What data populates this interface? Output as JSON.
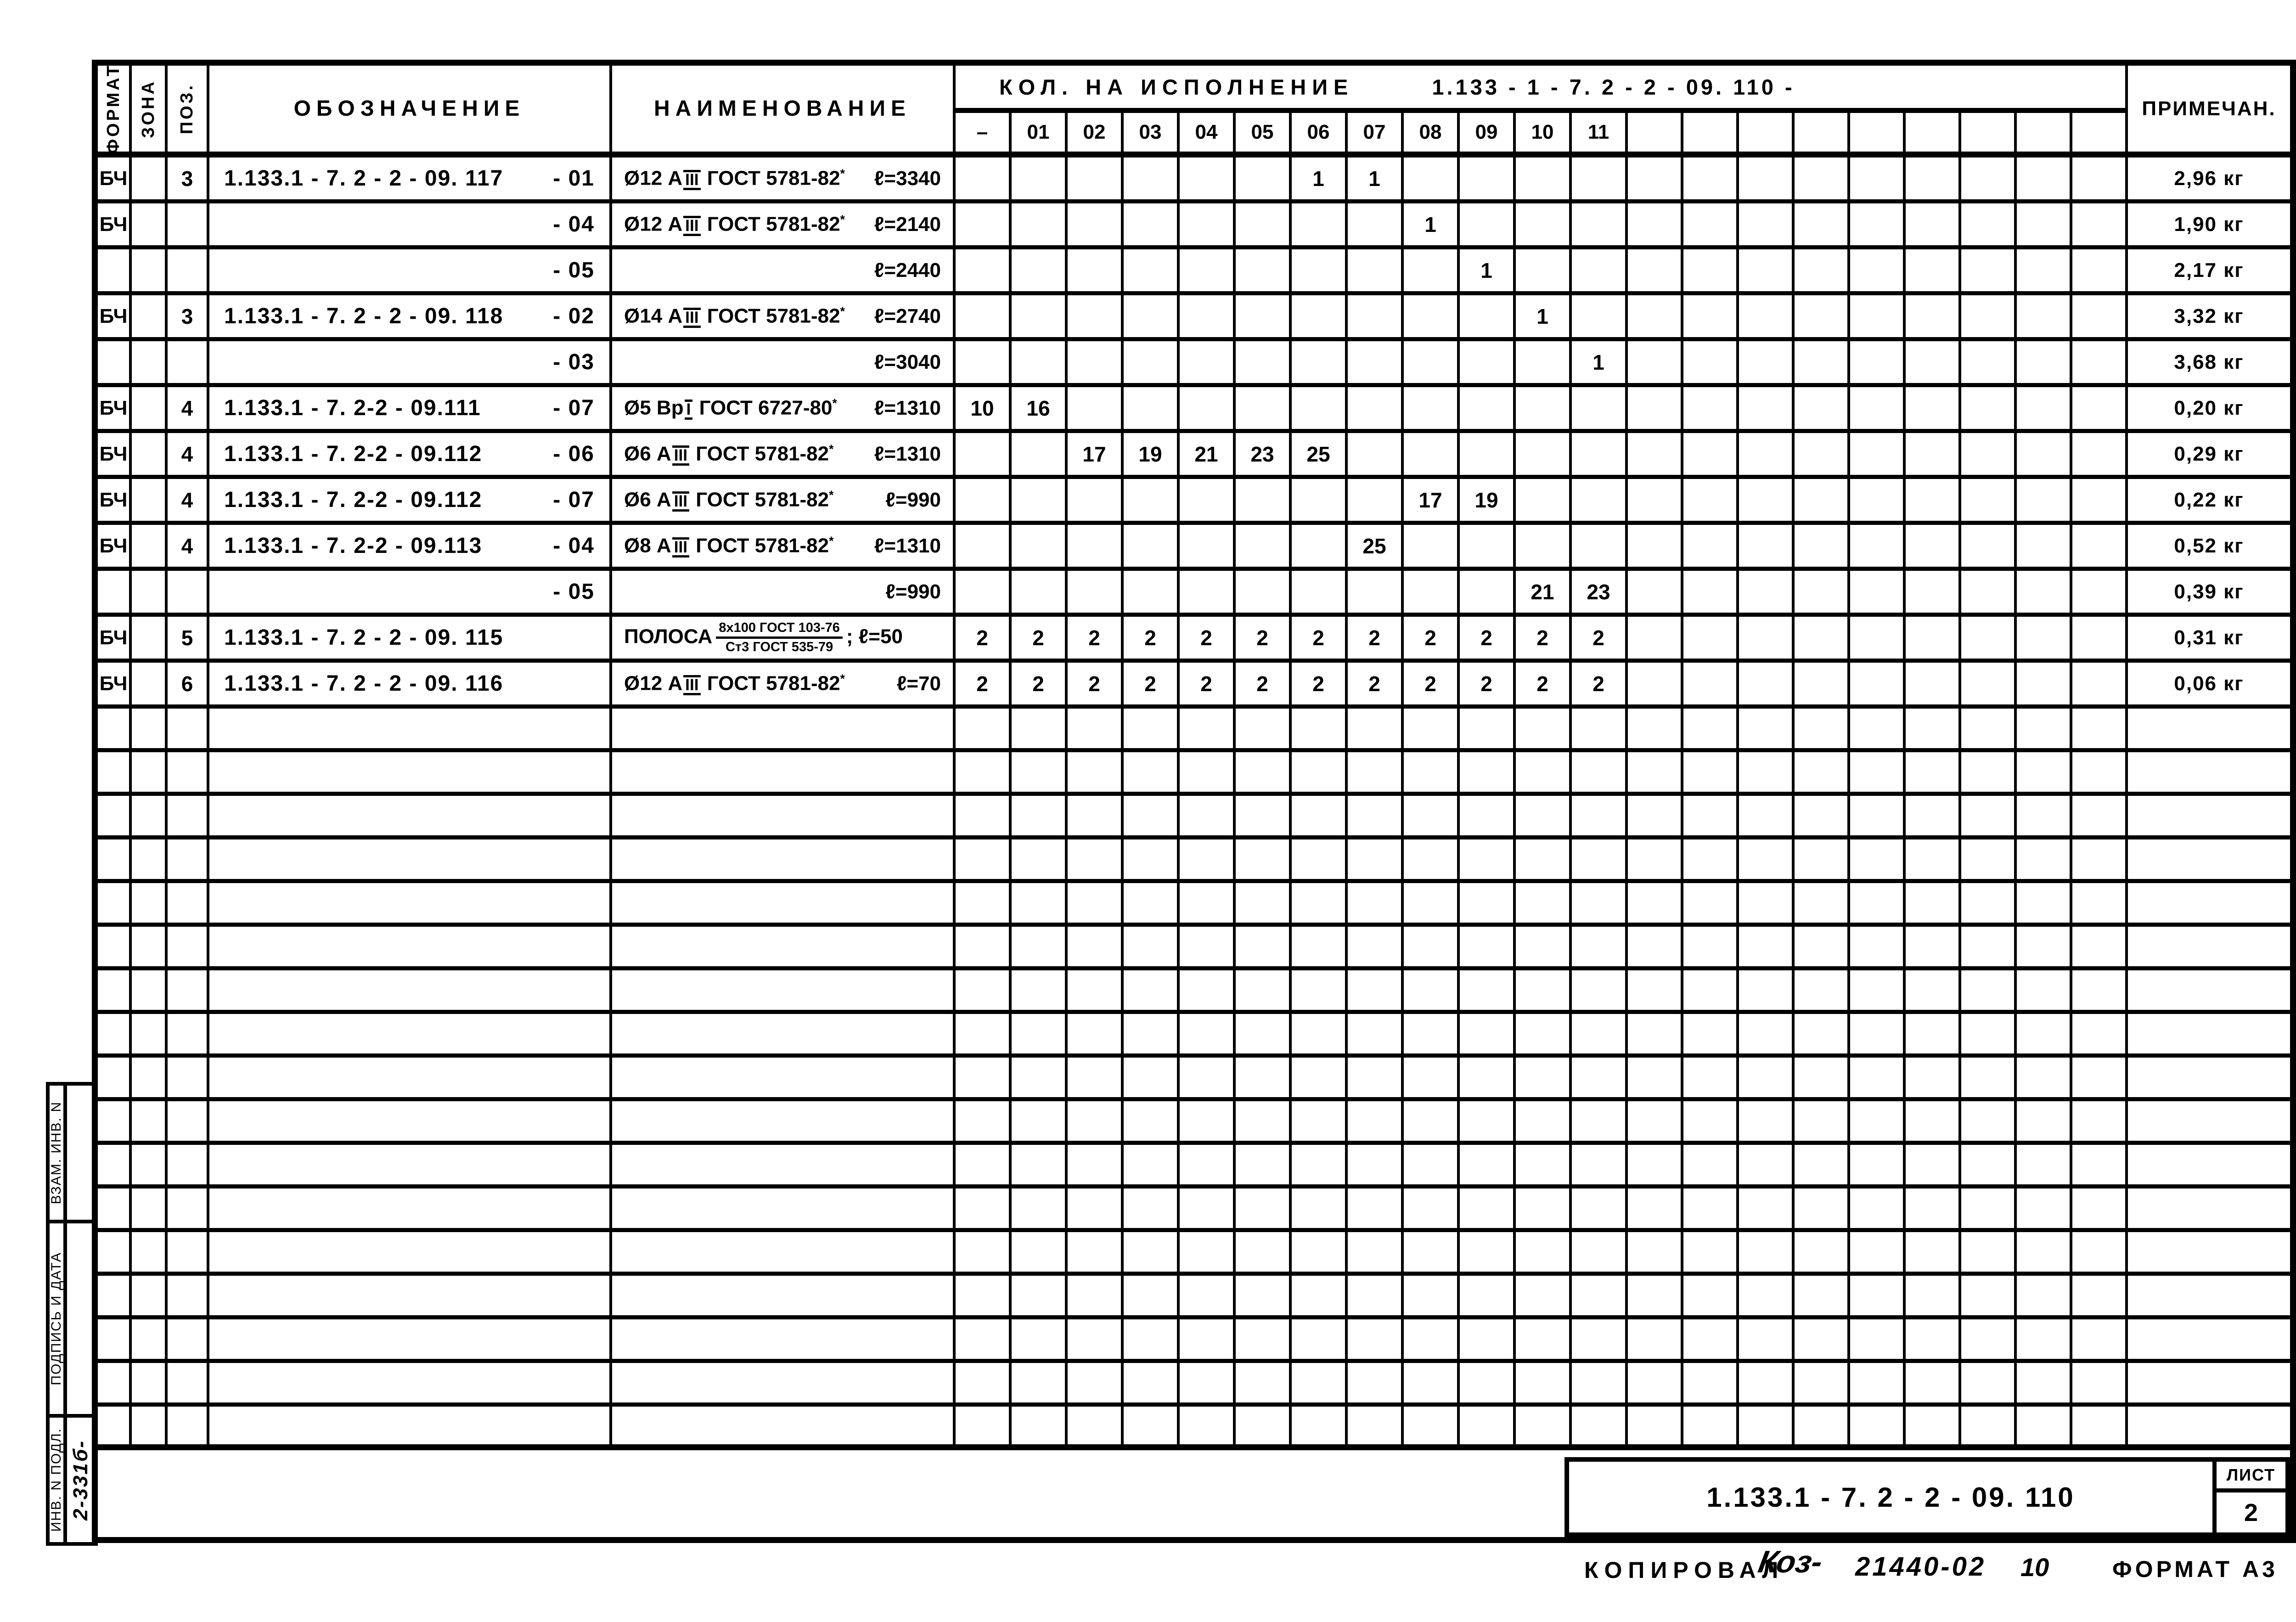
{
  "colors": {
    "ink": "#000000",
    "paper": "#ffffff"
  },
  "table": {
    "headers": {
      "format": "ФОРМАТ",
      "zona": "ЗОНА",
      "poz": "ПОЗ.",
      "designation": "ОБОЗНАЧЕНИЕ",
      "name": "НАИМЕНОВАНИЕ",
      "qty_label": "КОЛ.  НА  ИСПОЛНЕНИЕ",
      "qty_code": "1.133 - 1 - 7. 2 - 2  - 09. 110 -",
      "note": "ПРИМЕЧАН."
    },
    "exec_columns": [
      "–",
      "01",
      "02",
      "03",
      "04",
      "05",
      "06",
      "07",
      "08",
      "09",
      "10",
      "11"
    ],
    "extra_empty_columns": 9,
    "empty_row_count": 17,
    "rows": [
      {
        "format": "БЧ",
        "zona": "",
        "poz": "3",
        "oboz": "1.133.1 - 7. 2 - 2 - 09. 117",
        "suffix": "- 01",
        "name": "Ø12 АIII ГОСТ 5781-82*",
        "len": "ℓ=3340",
        "qty": {
          "06": "1",
          "07": "1"
        },
        "note": "2,96 кг"
      },
      {
        "format": "БЧ",
        "zona": "",
        "poz": "",
        "oboz": "",
        "suffix": "- 04",
        "name": "Ø12 АIII ГОСТ 5781-82*",
        "len": "ℓ=2140",
        "qty": {
          "08": "1"
        },
        "note": "1,90 кг"
      },
      {
        "format": "",
        "zona": "",
        "poz": "",
        "oboz": "",
        "suffix": "- 05",
        "name": "",
        "len": "ℓ=2440",
        "qty": {
          "09": "1"
        },
        "note": "2,17 кг"
      },
      {
        "format": "БЧ",
        "zona": "",
        "poz": "3",
        "oboz": "1.133.1 - 7. 2 - 2 - 09. 118",
        "suffix": "-  02",
        "name": "Ø14 АIII ГОСТ 5781-82*",
        "len": "ℓ=2740",
        "qty": {
          "10": "1"
        },
        "note": "3,32 кг"
      },
      {
        "format": "",
        "zona": "",
        "poz": "",
        "oboz": "",
        "suffix": "- 03",
        "name": "",
        "len": "ℓ=3040",
        "qty": {
          "11": "1"
        },
        "note": "3,68 кг"
      },
      {
        "format": "БЧ",
        "zona": "",
        "poz": "4",
        "oboz": "1.133.1 - 7. 2-2 - 09.111",
        "suffix": "- 07",
        "name": "Ø5 ВрI ГОСТ 6727-80*",
        "len": "ℓ=1310",
        "qty": {
          "–": "10",
          "01": "16"
        },
        "note": "0,20 кг"
      },
      {
        "format": "БЧ",
        "zona": "",
        "poz": "4",
        "oboz": "1.133.1 - 7. 2-2 - 09.112",
        "suffix": "- 06",
        "name": "Ø6 АIII ГОСТ 5781-82*",
        "len": "ℓ=1310",
        "qty": {
          "02": "17",
          "03": "19",
          "04": "21",
          "05": "23",
          "06": "25"
        },
        "note": "0,29 кг"
      },
      {
        "format": "БЧ",
        "zona": "",
        "poz": "4",
        "oboz": "1.133.1 - 7. 2-2 - 09.112",
        "suffix": "- 07",
        "name": "Ø6 АIII ГОСТ 5781-82*",
        "len": "ℓ=990",
        "qty": {
          "08": "17",
          "09": "19"
        },
        "note": "0,22 кг"
      },
      {
        "format": "БЧ",
        "zona": "",
        "poz": "4",
        "oboz": "1.133.1 - 7. 2-2 - 09.113",
        "suffix": "- 04",
        "name": "Ø8 АIII ГОСТ 5781-82*",
        "len": "ℓ=1310",
        "qty": {
          "07": "25"
        },
        "note": "0,52 кг"
      },
      {
        "format": "",
        "zona": "",
        "poz": "",
        "oboz": "",
        "suffix": "- 05",
        "name": "",
        "len": "ℓ=990",
        "qty": {
          "10": "21",
          "11": "23"
        },
        "note": "0,39 кг"
      },
      {
        "format": "БЧ",
        "zona": "",
        "poz": "5",
        "oboz": "1.133.1 - 7. 2 - 2  - 09. 115",
        "suffix": "",
        "name": "ПОЛОСА",
        "frac_num": "8х100 ГОСТ 103-76",
        "frac_den": "Ст3 ГОСТ 535-79",
        "after_frac": "; ℓ=50",
        "len": "",
        "qty": {
          "–": "2",
          "01": "2",
          "02": "2",
          "03": "2",
          "04": "2",
          "05": "2",
          "06": "2",
          "07": "2",
          "08": "2",
          "09": "2",
          "10": "2",
          "11": "2"
        },
        "note": "0,31 кг"
      },
      {
        "format": "БЧ",
        "zona": "",
        "poz": "6",
        "oboz": "1.133.1 - 7. 2 - 2  - 09. 116",
        "suffix": "",
        "name": "Ø12 АIII ГОСТ 5781-82*",
        "len": "ℓ=70",
        "qty": {
          "–": "2",
          "01": "2",
          "02": "2",
          "03": "2",
          "04": "2",
          "05": "2",
          "06": "2",
          "07": "2",
          "08": "2",
          "09": "2",
          "10": "2",
          "11": "2"
        },
        "note": "0,06 кг"
      }
    ]
  },
  "stamp": {
    "sections": [
      {
        "label": "ВЗАМ. ИНВ. N"
      },
      {
        "label": "ПОДПИСЬ И ДАТА"
      },
      {
        "label": "ИНВ. N ПОДЛ."
      }
    ],
    "archive_no": "2-331б-"
  },
  "title_block": {
    "code": "1.133.1 - 7. 2 - 2  - 09. 110",
    "sheet_label": "ЛИСТ",
    "sheet_number": "2"
  },
  "footer": {
    "copied_label": "КОПИРОВАЛ",
    "signature": "Коз-",
    "number": "21440-02",
    "count": "10",
    "format_label": "ФОРМАТ А3"
  }
}
